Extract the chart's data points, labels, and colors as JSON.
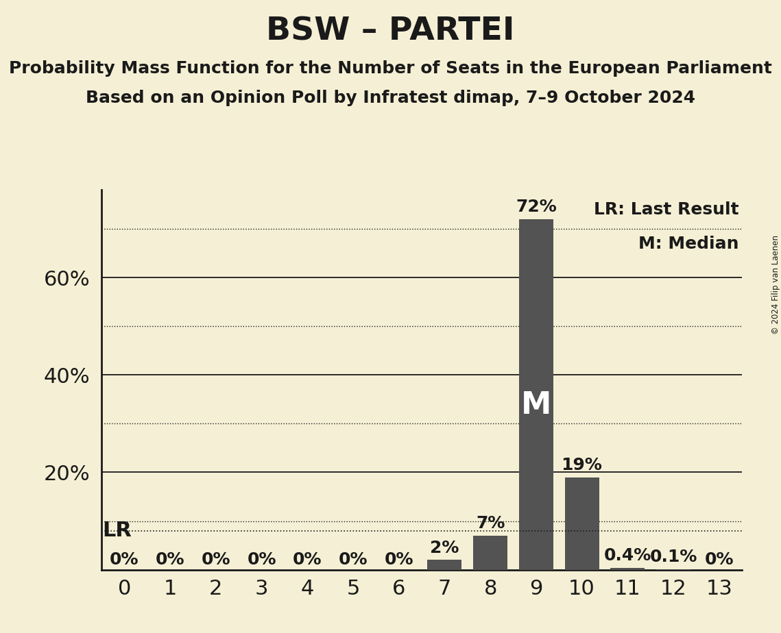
{
  "title": "BSW – PARTEI",
  "subtitle1": "Probability Mass Function for the Number of Seats in the European Parliament",
  "subtitle2": "Based on an Opinion Poll by Infratest dimap, 7–9 October 2024",
  "copyright": "© 2024 Filip van Laenen",
  "seats": [
    0,
    1,
    2,
    3,
    4,
    5,
    6,
    7,
    8,
    9,
    10,
    11,
    12,
    13
  ],
  "probabilities": [
    0.0,
    0.0,
    0.0,
    0.0,
    0.0,
    0.0,
    0.0,
    2.0,
    7.0,
    72.0,
    19.0,
    0.4,
    0.1,
    0.0
  ],
  "bar_color": "#535353",
  "background_color": "#f5f0d5",
  "text_color": "#1a1a1a",
  "lr_line_y": 8.0,
  "median_seat": 9,
  "yticks_labeled": [
    20,
    40,
    60
  ],
  "yticks_solid": [
    20,
    40,
    60
  ],
  "yticks_dotted": [
    10,
    30,
    50,
    70
  ],
  "lr_dotted_y": 8.0,
  "ylim": [
    0,
    78
  ],
  "xlim": [
    -0.5,
    13.5
  ],
  "bar_labels": [
    "0%",
    "0%",
    "0%",
    "0%",
    "0%",
    "0%",
    "0%",
    "2%",
    "7%",
    "72%",
    "19%",
    "0.4%",
    "0.1%",
    "0%"
  ],
  "title_fontsize": 34,
  "subtitle_fontsize": 18,
  "tick_fontsize": 22,
  "legend_fontsize": 18,
  "bar_label_fontsize": 18,
  "median_fontsize": 32,
  "lr_label_fontsize": 22
}
